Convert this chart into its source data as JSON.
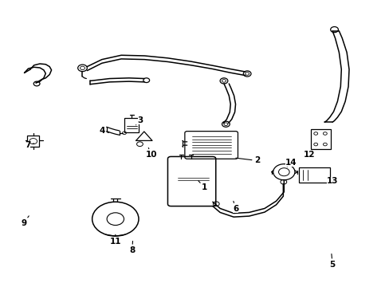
{
  "background_color": "#ffffff",
  "line_color": "#000000",
  "text_color": "#000000",
  "fig_width": 4.89,
  "fig_height": 3.6,
  "dpi": 100,
  "label_configs": {
    "1": {
      "txt": [
        0.525,
        0.345
      ],
      "arrow": [
        0.505,
        0.375
      ]
    },
    "2": {
      "txt": [
        0.66,
        0.44
      ],
      "arrow": [
        0.6,
        0.45
      ]
    },
    "3": {
      "txt": [
        0.36,
        0.58
      ],
      "arrow": [
        0.348,
        0.565
      ]
    },
    "4": {
      "txt": [
        0.26,
        0.545
      ],
      "arrow": [
        0.278,
        0.538
      ]
    },
    "5": {
      "txt": [
        0.855,
        0.075
      ],
      "arrow": [
        0.852,
        0.12
      ]
    },
    "6": {
      "txt": [
        0.605,
        0.27
      ],
      "arrow": [
        0.598,
        0.305
      ]
    },
    "7": {
      "txt": [
        0.068,
        0.495
      ],
      "arrow": [
        0.085,
        0.5
      ]
    },
    "8": {
      "txt": [
        0.338,
        0.125
      ],
      "arrow": [
        0.34,
        0.165
      ]
    },
    "9": {
      "txt": [
        0.058,
        0.22
      ],
      "arrow": [
        0.075,
        0.252
      ]
    },
    "10": {
      "txt": [
        0.388,
        0.46
      ],
      "arrow": [
        0.378,
        0.492
      ]
    },
    "11": {
      "txt": [
        0.295,
        0.155
      ],
      "arrow": [
        0.295,
        0.188
      ]
    },
    "12": {
      "txt": [
        0.795,
        0.46
      ],
      "arrow": [
        0.808,
        0.473
      ]
    },
    "13": {
      "txt": [
        0.855,
        0.368
      ],
      "arrow": [
        0.848,
        0.378
      ]
    },
    "14": {
      "txt": [
        0.748,
        0.432
      ],
      "arrow": [
        0.738,
        0.418
      ]
    }
  }
}
